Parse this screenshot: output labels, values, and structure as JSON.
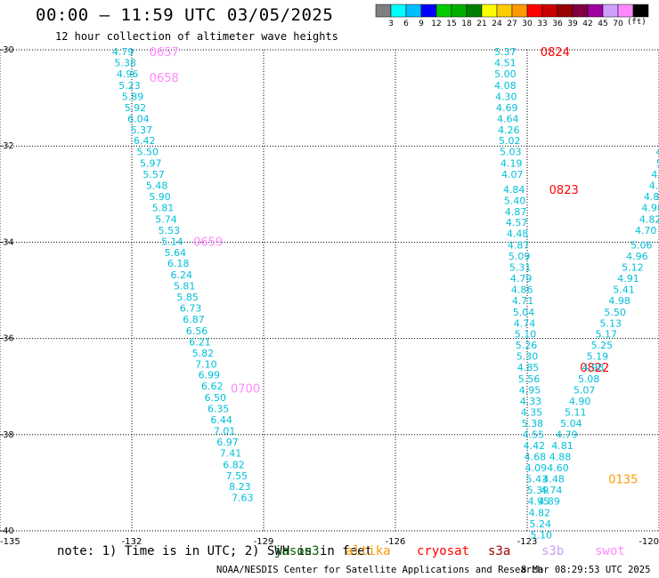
{
  "header": {
    "title": "00:00 — 11:59 UTC 03/05/2025",
    "subtitle": "12 hour collection of altimeter wave heights"
  },
  "legend": {
    "colors": [
      "#808080",
      "#00ffff",
      "#00bfff",
      "#0000ff",
      "#00cc00",
      "#00b000",
      "#008000",
      "#ffff00",
      "#ffcc00",
      "#ff9900",
      "#ff0000",
      "#cc0000",
      "#990000",
      "#800040",
      "#a000a0",
      "#d0a0ff",
      "#ff88ff",
      "#000000"
    ],
    "labels": [
      "3",
      "6",
      "9",
      "12",
      "15",
      "18",
      "21",
      "24",
      "27",
      "30",
      "33",
      "36",
      "39",
      "42",
      "45",
      "70"
    ],
    "unit": "(ft)"
  },
  "axes": {
    "x_ticks": [
      "-135",
      "-132",
      "-129",
      "-126",
      "-123",
      "-120"
    ],
    "y_ticks": [
      "-30",
      "-32",
      "-34",
      "-36",
      "-38",
      "-40"
    ]
  },
  "note": "note: 1) Time is in UTC; 2) SWH is in feet",
  "satellites": [
    {
      "name": "jason3",
      "color": "#006400"
    },
    {
      "name": "altika",
      "color": "#ff9900"
    },
    {
      "name": "cryosat",
      "color": "#ff0000"
    },
    {
      "name": "s3a",
      "color": "#990000"
    },
    {
      "name": "s3b",
      "color": "#c8a0f0"
    },
    {
      "name": "swot",
      "color": "#ff88ff"
    }
  ],
  "footer": {
    "credit": "NOAA/NESDIS Center for Satellite Applications and Research",
    "generated": "8 Mar 08:29:53 UTC 2025"
  },
  "chart_data": {
    "type": "scatter",
    "xlim": [
      -135,
      -120
    ],
    "ylim": [
      -40,
      -30
    ],
    "grid": true,
    "tracks": [
      {
        "satellite": "swot",
        "value_color": "#00bfd8",
        "time_color": "#ff88ff",
        "points": [
          {
            "lon": -132.2,
            "lat": -30.04,
            "v": "4.79"
          },
          {
            "lon": -132.15,
            "lat": -30.27,
            "v": "5.38"
          },
          {
            "lon": -132.1,
            "lat": -30.5,
            "v": "4.96"
          },
          {
            "lon": -132.05,
            "lat": -30.74,
            "v": "5.23"
          },
          {
            "lon": -131.98,
            "lat": -30.97,
            "v": "5.89"
          },
          {
            "lon": -131.92,
            "lat": -31.2,
            "v": "5.92"
          },
          {
            "lon": -131.85,
            "lat": -31.43,
            "v": "6.04"
          },
          {
            "lon": -131.78,
            "lat": -31.66,
            "v": "5.37"
          },
          {
            "lon": -131.71,
            "lat": -31.89,
            "v": "6.42"
          },
          {
            "lon": -131.64,
            "lat": -32.12,
            "v": "5.50"
          },
          {
            "lon": -131.57,
            "lat": -32.36,
            "v": "5.97"
          },
          {
            "lon": -131.5,
            "lat": -32.59,
            "v": "5.57"
          },
          {
            "lon": -131.43,
            "lat": -32.82,
            "v": "5.48"
          },
          {
            "lon": -131.36,
            "lat": -33.05,
            "v": "5.90"
          },
          {
            "lon": -131.29,
            "lat": -33.28,
            "v": "5.81"
          },
          {
            "lon": -131.22,
            "lat": -33.52,
            "v": "5.74"
          },
          {
            "lon": -131.15,
            "lat": -33.75,
            "v": "5.53"
          },
          {
            "lon": -131.08,
            "lat": -33.98,
            "v": "5.14"
          },
          {
            "lon": -131.01,
            "lat": -34.21,
            "v": "5.64"
          },
          {
            "lon": -130.94,
            "lat": -34.44,
            "v": "6.18"
          },
          {
            "lon": -130.87,
            "lat": -34.68,
            "v": "6.24"
          },
          {
            "lon": -130.8,
            "lat": -34.91,
            "v": "5.81"
          },
          {
            "lon": -130.73,
            "lat": -35.14,
            "v": "5.85"
          },
          {
            "lon": -130.66,
            "lat": -35.37,
            "v": "6.73"
          },
          {
            "lon": -130.59,
            "lat": -35.6,
            "v": "6.87"
          },
          {
            "lon": -130.52,
            "lat": -35.84,
            "v": "6.56"
          },
          {
            "lon": -130.45,
            "lat": -36.07,
            "v": "6.21"
          },
          {
            "lon": -130.38,
            "lat": -36.3,
            "v": "5.82"
          },
          {
            "lon": -130.31,
            "lat": -36.53,
            "v": "7.10"
          },
          {
            "lon": -130.24,
            "lat": -36.76,
            "v": "6.99"
          },
          {
            "lon": -130.17,
            "lat": -36.99,
            "v": "6.62"
          },
          {
            "lon": -130.1,
            "lat": -37.23,
            "v": "6.50"
          },
          {
            "lon": -130.03,
            "lat": -37.46,
            "v": "6.35"
          },
          {
            "lon": -129.96,
            "lat": -37.69,
            "v": "6.44"
          },
          {
            "lon": -129.89,
            "lat": -37.92,
            "v": "7.01"
          },
          {
            "lon": -129.82,
            "lat": -38.15,
            "v": "6.97"
          },
          {
            "lon": -129.75,
            "lat": -38.38,
            "v": "7.41"
          },
          {
            "lon": -129.68,
            "lat": -38.62,
            "v": "6.82"
          },
          {
            "lon": -129.61,
            "lat": -38.85,
            "v": "7.55"
          },
          {
            "lon": -129.54,
            "lat": -39.08,
            "v": "8.23"
          },
          {
            "lon": -129.48,
            "lat": -39.31,
            "v": "7.63"
          }
        ],
        "times": [
          {
            "lon": -131.6,
            "lat": -30.04,
            "t": "0657"
          },
          {
            "lon": -131.6,
            "lat": -30.57,
            "t": "0658"
          },
          {
            "lon": -130.6,
            "lat": -33.98,
            "t": "0659"
          },
          {
            "lon": -129.75,
            "lat": -37.03,
            "t": "0700"
          }
        ]
      },
      {
        "satellite": "cryosat",
        "value_color": "#00bfd8",
        "time_color": "#ff0000",
        "points": [
          {
            "lon": -123.5,
            "lat": -30.04,
            "v": "5.37"
          },
          {
            "lon": -123.5,
            "lat": -30.27,
            "v": "4.51"
          },
          {
            "lon": -123.5,
            "lat": -30.5,
            "v": "5.00"
          },
          {
            "lon": -123.5,
            "lat": -30.74,
            "v": "4.08"
          },
          {
            "lon": -123.48,
            "lat": -30.97,
            "v": "4.30"
          },
          {
            "lon": -123.46,
            "lat": -31.2,
            "v": "4.69"
          },
          {
            "lon": -123.44,
            "lat": -31.43,
            "v": "4.64"
          },
          {
            "lon": -123.42,
            "lat": -31.66,
            "v": "4.26"
          },
          {
            "lon": -123.4,
            "lat": -31.89,
            "v": "5.02"
          },
          {
            "lon": -123.38,
            "lat": -32.12,
            "v": "5.03"
          },
          {
            "lon": -123.36,
            "lat": -32.36,
            "v": "4.19"
          },
          {
            "lon": -123.34,
            "lat": -32.59,
            "v": "4.07"
          },
          {
            "lon": -123.3,
            "lat": -32.9,
            "v": "4.84"
          },
          {
            "lon": -123.28,
            "lat": -33.13,
            "v": "5.40"
          },
          {
            "lon": -123.26,
            "lat": -33.36,
            "v": "4.87"
          },
          {
            "lon": -123.24,
            "lat": -33.59,
            "v": "4.57"
          },
          {
            "lon": -123.22,
            "lat": -33.82,
            "v": "4.48"
          },
          {
            "lon": -123.2,
            "lat": -34.06,
            "v": "4.87"
          },
          {
            "lon": -123.18,
            "lat": -34.29,
            "v": "5.09"
          },
          {
            "lon": -123.16,
            "lat": -34.52,
            "v": "5.31"
          },
          {
            "lon": -123.14,
            "lat": -34.75,
            "v": "4.79"
          },
          {
            "lon": -123.12,
            "lat": -34.98,
            "v": "4.86"
          },
          {
            "lon": -123.1,
            "lat": -35.21,
            "v": "4.71"
          },
          {
            "lon": -123.08,
            "lat": -35.45,
            "v": "5.04"
          },
          {
            "lon": -123.06,
            "lat": -35.68,
            "v": "4.74"
          },
          {
            "lon": -123.04,
            "lat": -35.91,
            "v": "5.10"
          },
          {
            "lon": -123.02,
            "lat": -36.14,
            "v": "5.26"
          },
          {
            "lon": -123.0,
            "lat": -36.37,
            "v": "5.30"
          },
          {
            "lon": -122.98,
            "lat": -36.6,
            "v": "4.85"
          },
          {
            "lon": -122.96,
            "lat": -36.84,
            "v": "5.56"
          },
          {
            "lon": -122.94,
            "lat": -37.07,
            "v": "4.95"
          },
          {
            "lon": -122.92,
            "lat": -37.3,
            "v": "4.33"
          },
          {
            "lon": -122.9,
            "lat": -37.53,
            "v": "4.35"
          },
          {
            "lon": -122.88,
            "lat": -37.76,
            "v": "5.38"
          },
          {
            "lon": -122.86,
            "lat": -37.99,
            "v": "4.55"
          },
          {
            "lon": -122.84,
            "lat": -38.23,
            "v": "4.42"
          },
          {
            "lon": -122.82,
            "lat": -38.46,
            "v": "4.68"
          },
          {
            "lon": -122.8,
            "lat": -38.69,
            "v": "4.09"
          },
          {
            "lon": -122.78,
            "lat": -38.92,
            "v": "5.43"
          },
          {
            "lon": -122.76,
            "lat": -39.15,
            "v": "5.39"
          },
          {
            "lon": -122.74,
            "lat": -39.38,
            "v": "4.95"
          },
          {
            "lon": -122.72,
            "lat": -39.62,
            "v": "4.82"
          },
          {
            "lon": -122.7,
            "lat": -39.85,
            "v": "5.24"
          },
          {
            "lon": -122.68,
            "lat": -40.08,
            "v": "5.10"
          }
        ],
        "times": [
          {
            "lon": -122.7,
            "lat": -30.04,
            "t": "0824"
          },
          {
            "lon": -122.5,
            "lat": -32.9,
            "t": "0823"
          },
          {
            "lon": -121.8,
            "lat": -36.6,
            "t": "0822"
          }
        ]
      },
      {
        "satellite": "altika",
        "value_color": "#00bfd8",
        "time_color": "#ff9900",
        "points": [
          {
            "lon": -120.0,
            "lat": -32.12,
            "v": "4"
          },
          {
            "lon": -119.96,
            "lat": -32.36,
            "v": "5."
          },
          {
            "lon": -120.0,
            "lat": -32.59,
            "v": "4.9"
          },
          {
            "lon": -120.05,
            "lat": -32.82,
            "v": "4.8"
          },
          {
            "lon": -120.1,
            "lat": -33.05,
            "v": "4.88"
          },
          {
            "lon": -120.15,
            "lat": -33.28,
            "v": "4.98"
          },
          {
            "lon": -120.2,
            "lat": -33.52,
            "v": "4.82"
          },
          {
            "lon": -120.3,
            "lat": -33.75,
            "v": "4.70"
          },
          {
            "lon": -120.4,
            "lat": -34.06,
            "v": "5.06"
          },
          {
            "lon": -120.5,
            "lat": -34.29,
            "v": "4.96"
          },
          {
            "lon": -120.6,
            "lat": -34.52,
            "v": "5.12"
          },
          {
            "lon": -120.7,
            "lat": -34.75,
            "v": "4.91"
          },
          {
            "lon": -120.8,
            "lat": -34.98,
            "v": "5.41"
          },
          {
            "lon": -120.9,
            "lat": -35.21,
            "v": "4.98"
          },
          {
            "lon": -121.0,
            "lat": -35.45,
            "v": "5.50"
          },
          {
            "lon": -121.1,
            "lat": -35.68,
            "v": "5.13"
          },
          {
            "lon": -121.2,
            "lat": -35.91,
            "v": "5.17"
          },
          {
            "lon": -121.3,
            "lat": -36.14,
            "v": "5.25"
          },
          {
            "lon": -121.4,
            "lat": -36.37,
            "v": "5.19"
          },
          {
            "lon": -121.5,
            "lat": -36.6,
            "v": "4.98"
          },
          {
            "lon": -121.6,
            "lat": -36.84,
            "v": "5.08"
          },
          {
            "lon": -121.7,
            "lat": -37.07,
            "v": "5.07"
          },
          {
            "lon": -121.8,
            "lat": -37.3,
            "v": "4.90"
          },
          {
            "lon": -121.9,
            "lat": -37.53,
            "v": "5.11"
          },
          {
            "lon": -122.0,
            "lat": -37.76,
            "v": "5.04"
          },
          {
            "lon": -122.1,
            "lat": -37.99,
            "v": "4.79"
          },
          {
            "lon": -122.2,
            "lat": -38.23,
            "v": "4.81"
          },
          {
            "lon": -122.25,
            "lat": -38.46,
            "v": "4.88"
          },
          {
            "lon": -122.3,
            "lat": -38.69,
            "v": "4.60"
          },
          {
            "lon": -122.4,
            "lat": -38.92,
            "v": "4.48"
          },
          {
            "lon": -122.45,
            "lat": -39.15,
            "v": "4.74"
          },
          {
            "lon": -122.5,
            "lat": -39.38,
            "v": "4.89"
          }
        ],
        "times": [
          {
            "lon": -119.9,
            "lat": -35.9,
            "t": "013"
          },
          {
            "lon": -121.15,
            "lat": -38.92,
            "t": "0135"
          }
        ]
      }
    ]
  }
}
